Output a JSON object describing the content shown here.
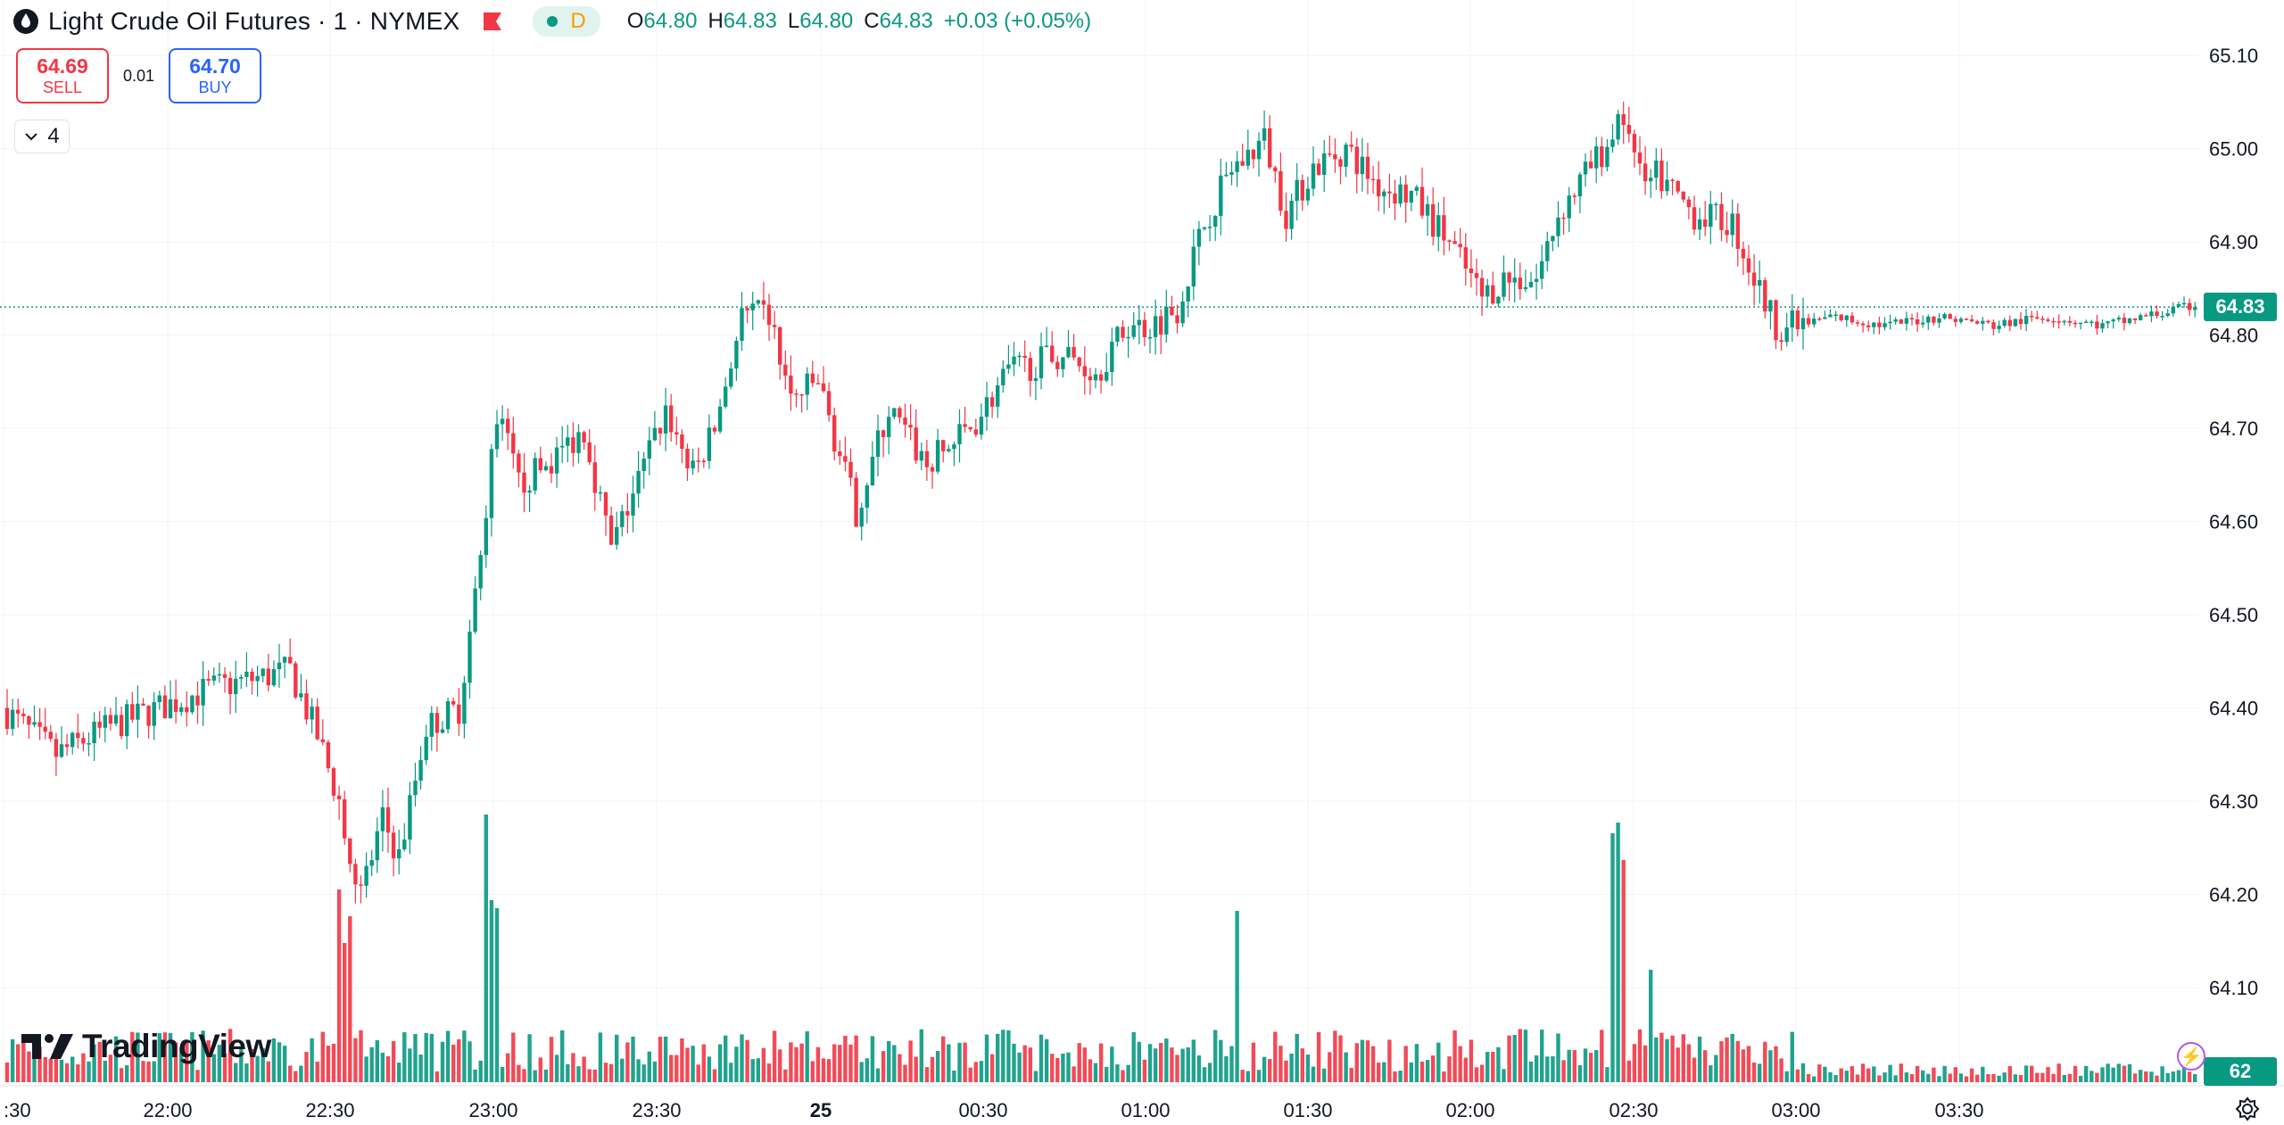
{
  "legend": {
    "title": "Light Crude Oil Futures · 1 · NYMEX",
    "pill_d": "D",
    "o_label": "O",
    "o_value": "64.80",
    "h_label": "H",
    "h_value": "64.83",
    "l_label": "L",
    "l_value": "64.80",
    "c_label": "C",
    "c_value": "64.83",
    "change": "+0.03 (+0.05%)"
  },
  "trade": {
    "sell_price": "64.69",
    "sell_label": "SELL",
    "spread": "0.01",
    "buy_price": "64.70",
    "buy_label": "BUY"
  },
  "indicators_toggle": {
    "count": "4"
  },
  "logo_text": "TradingView",
  "price_tag": "64.83",
  "volume_tag": "62",
  "colors": {
    "up": "#089981",
    "down": "#f23645",
    "buy": "#2962ff",
    "accent": "#b455f0"
  },
  "chart_data": {
    "type": "candlestick",
    "symbol": "Light Crude Oil Futures",
    "interval": "1",
    "exchange": "NYMEX",
    "y_ticks": [
      "65.10",
      "65.00",
      "64.90",
      "64.80",
      "64.70",
      "64.60",
      "64.50",
      "64.40",
      "64.30",
      "64.20",
      "64.10"
    ],
    "y_range": [
      64.04,
      65.16
    ],
    "x_ticks": [
      ":30",
      "22:00",
      "22:30",
      "23:00",
      "23:30",
      "25",
      "00:30",
      "01:00",
      "01:30",
      "02:00",
      "02:30",
      "03:00",
      "03:30"
    ],
    "last_price": 64.83,
    "last_volume": 62,
    "grid": true,
    "path_anchors": [
      {
        "t": 0,
        "p": 64.4
      },
      {
        "t": 10,
        "p": 64.35
      },
      {
        "t": 20,
        "p": 64.38
      },
      {
        "t": 38,
        "p": 64.42
      },
      {
        "t": 53,
        "p": 64.44
      },
      {
        "t": 58,
        "p": 64.37
      },
      {
        "t": 62,
        "p": 64.3
      },
      {
        "t": 66,
        "p": 64.2
      },
      {
        "t": 70,
        "p": 64.28
      },
      {
        "t": 73,
        "p": 64.24
      },
      {
        "t": 78,
        "p": 64.38
      },
      {
        "t": 84,
        "p": 64.4
      },
      {
        "t": 88,
        "p": 64.56
      },
      {
        "t": 91,
        "p": 64.72
      },
      {
        "t": 95,
        "p": 64.64
      },
      {
        "t": 100,
        "p": 64.66
      },
      {
        "t": 107,
        "p": 64.7
      },
      {
        "t": 112,
        "p": 64.57
      },
      {
        "t": 122,
        "p": 64.72
      },
      {
        "t": 127,
        "p": 64.65
      },
      {
        "t": 131,
        "p": 64.7
      },
      {
        "t": 136,
        "p": 64.82
      },
      {
        "t": 141,
        "p": 64.82
      },
      {
        "t": 145,
        "p": 64.73
      },
      {
        "t": 150,
        "p": 64.75
      },
      {
        "t": 157,
        "p": 64.61
      },
      {
        "t": 163,
        "p": 64.72
      },
      {
        "t": 170,
        "p": 64.66
      },
      {
        "t": 178,
        "p": 64.7
      },
      {
        "t": 185,
        "p": 64.76
      },
      {
        "t": 195,
        "p": 64.78
      },
      {
        "t": 201,
        "p": 64.76
      },
      {
        "t": 207,
        "p": 64.81
      },
      {
        "t": 211,
        "p": 64.81
      },
      {
        "t": 216,
        "p": 64.83
      },
      {
        "t": 221,
        "p": 64.92
      },
      {
        "t": 225,
        "p": 64.97
      },
      {
        "t": 232,
        "p": 65.01
      },
      {
        "t": 236,
        "p": 64.93
      },
      {
        "t": 241,
        "p": 64.98
      },
      {
        "t": 247,
        "p": 65.0
      },
      {
        "t": 253,
        "p": 64.96
      },
      {
        "t": 259,
        "p": 64.95
      },
      {
        "t": 266,
        "p": 64.9
      },
      {
        "t": 272,
        "p": 64.84
      },
      {
        "t": 276,
        "p": 64.86
      },
      {
        "t": 282,
        "p": 64.86
      },
      {
        "t": 286,
        "p": 64.93
      },
      {
        "t": 292,
        "p": 64.98
      },
      {
        "t": 297,
        "p": 65.02
      },
      {
        "t": 302,
        "p": 64.98
      },
      {
        "t": 306,
        "p": 64.96
      },
      {
        "t": 311,
        "p": 64.93
      },
      {
        "t": 318,
        "p": 64.92
      },
      {
        "t": 322,
        "p": 64.86
      },
      {
        "t": 326,
        "p": 64.81
      },
      {
        "t": 331,
        "p": 64.81
      },
      {
        "t": 336,
        "p": 64.82
      },
      {
        "t": 346,
        "p": 64.81
      },
      {
        "t": 356,
        "p": 64.82
      },
      {
        "t": 366,
        "p": 64.81
      },
      {
        "t": 376,
        "p": 64.82
      },
      {
        "t": 386,
        "p": 64.81
      },
      {
        "t": 402,
        "p": 64.83
      }
    ],
    "volume_spikes": [
      {
        "t": 61,
        "v": 0.72
      },
      {
        "t": 62,
        "v": 0.52
      },
      {
        "t": 63,
        "v": 0.62
      },
      {
        "t": 88,
        "v": 1.0
      },
      {
        "t": 89,
        "v": 0.68
      },
      {
        "t": 90,
        "v": 0.65
      },
      {
        "t": 226,
        "v": 0.64
      },
      {
        "t": 295,
        "v": 0.93
      },
      {
        "t": 296,
        "v": 0.97
      },
      {
        "t": 297,
        "v": 0.83
      },
      {
        "t": 302,
        "v": 0.42
      }
    ]
  }
}
